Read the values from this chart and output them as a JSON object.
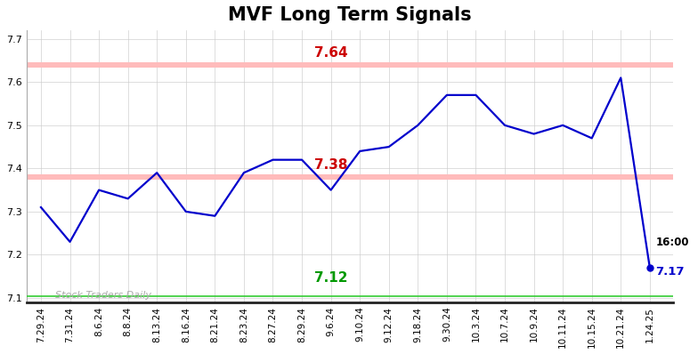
{
  "title": "MVF Long Term Signals",
  "x_labels": [
    "7.29.24",
    "7.31.24",
    "8.6.24",
    "8.8.24",
    "8.13.24",
    "8.16.24",
    "8.21.24",
    "8.23.24",
    "8.27.24",
    "8.29.24",
    "9.6.24",
    "9.10.24",
    "9.12.24",
    "9.18.24",
    "9.30.24",
    "10.3.24",
    "10.7.24",
    "10.9.24",
    "10.11.24",
    "10.15.24",
    "10.21.24",
    "1.24.25"
  ],
  "y_values": [
    7.31,
    7.23,
    7.35,
    7.33,
    7.39,
    7.3,
    7.29,
    7.39,
    7.42,
    7.42,
    7.35,
    7.44,
    7.45,
    7.5,
    7.57,
    7.57,
    7.5,
    7.48,
    7.5,
    7.47,
    7.61,
    7.17
  ],
  "line_color": "#0000cc",
  "last_point_color": "#0000cc",
  "hline_upper": 7.64,
  "hline_middle": 7.38,
  "hline_lower": 7.12,
  "hline_green": 7.105,
  "hline_upper_color": "#ffbbbb",
  "hline_middle_color": "#ffbbbb",
  "hline_green_color": "#33cc33",
  "label_upper": "7.64",
  "label_upper_color": "#cc0000",
  "label_middle": "7.38",
  "label_middle_color": "#cc0000",
  "label_lower": "7.12",
  "label_lower_color": "#009900",
  "label_last_time": "16:00",
  "label_last_value": "7.17",
  "watermark": "Stock Traders Daily",
  "ylim_min": 7.09,
  "ylim_max": 7.72,
  "yticks": [
    7.1,
    7.2,
    7.3,
    7.4,
    7.5,
    7.6,
    7.7
  ],
  "bg_color": "#ffffff",
  "grid_color": "#cccccc",
  "title_fontsize": 15,
  "axis_fontsize": 8,
  "annotation_fontsize": 11
}
